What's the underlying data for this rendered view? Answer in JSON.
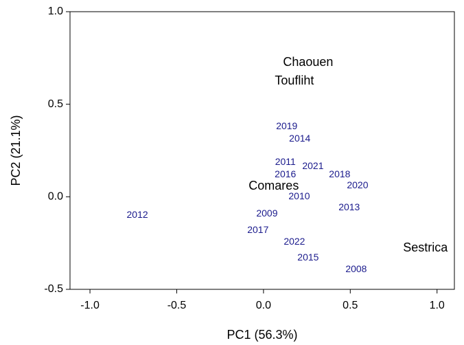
{
  "chart_data": {
    "type": "text-scatter",
    "x_label": "PC1 (56.3%)",
    "y_label": "PC2 (21.1%)",
    "xlim": [
      -1.115,
      1.1
    ],
    "ylim": [
      -0.5,
      1.0
    ],
    "xticks": [
      {
        "value": -1,
        "label": "-1.0"
      },
      {
        "value": -0.5,
        "label": "-0.5"
      },
      {
        "value": 0,
        "label": "0.0"
      },
      {
        "value": 0.5,
        "label": "0.5"
      },
      {
        "value": 1,
        "label": "1.0"
      }
    ],
    "yticks": [
      {
        "value": -0.5,
        "label": "-0.5"
      },
      {
        "value": 0,
        "label": "0.0"
      },
      {
        "value": 0.5,
        "label": "0.5"
      },
      {
        "value": 1,
        "label": "1.0"
      }
    ],
    "series": [
      {
        "color": "#000000",
        "font_size": 18,
        "labels": [
          "Chaouen",
          "Toufliht",
          "Comares",
          "Sestrica"
        ],
        "x": [
          0.257,
          0.178,
          0.059,
          0.933
        ],
        "values": [
          0.725,
          0.625,
          0.056,
          -0.279
        ]
      },
      {
        "color": "#1a1a8c",
        "font_size": 14,
        "labels": [
          "2019",
          "2014",
          "2011",
          "2021",
          "2016",
          "2018",
          "2020",
          "2010",
          "2013",
          "2009",
          "2012",
          "2017",
          "2022",
          "2015",
          "2008"
        ],
        "x": [
          0.134,
          0.209,
          0.126,
          0.285,
          0.126,
          0.439,
          0.542,
          0.206,
          0.494,
          0.02,
          -0.727,
          -0.032,
          0.178,
          0.257,
          0.534
        ],
        "values": [
          0.379,
          0.312,
          0.186,
          0.164,
          0.119,
          0.119,
          0.059,
          0.0,
          -0.059,
          -0.093,
          -0.1,
          -0.182,
          -0.245,
          -0.331,
          -0.394
        ]
      }
    ]
  }
}
